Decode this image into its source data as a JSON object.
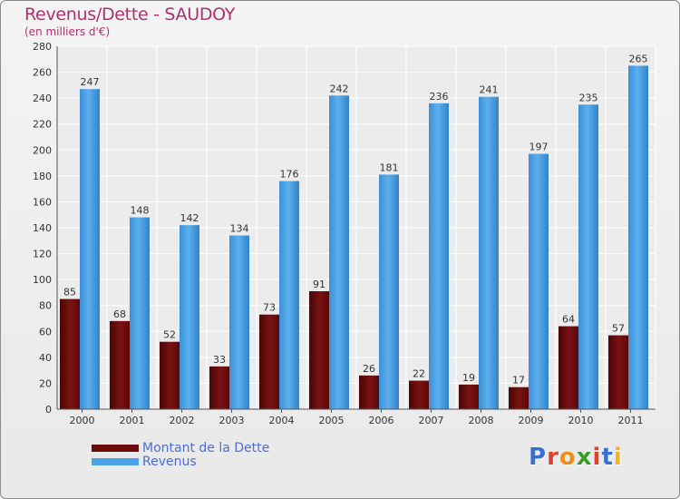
{
  "title": "Revenus/Dette - SAUDOY",
  "subtitle": "(en milliers d'€)",
  "logo": {
    "letters": [
      {
        "ch": "P",
        "color": "#3a6fd0"
      },
      {
        "ch": "r",
        "color": "#e2402a"
      },
      {
        "ch": "o",
        "color": "#f08c1c"
      },
      {
        "ch": "x",
        "color": "#3a9a2a"
      },
      {
        "ch": "i",
        "color": "#e2402a"
      },
      {
        "ch": "t",
        "color": "#3a6fd0"
      },
      {
        "ch": "i",
        "color": "#f0b41c"
      }
    ]
  },
  "legend": {
    "items": [
      {
        "label": "Montant de la Dette",
        "color": "#6a0a0a"
      },
      {
        "label": "Revenus",
        "color": "#4aa3e8"
      }
    ]
  },
  "chart_data": {
    "type": "bar",
    "title": "Revenus/Dette - SAUDOY",
    "subtitle": "(en milliers d'€)",
    "categories": [
      "2000",
      "2001",
      "2002",
      "2003",
      "2004",
      "2005",
      "2006",
      "2007",
      "2008",
      "2009",
      "2010",
      "2011"
    ],
    "series": [
      {
        "name": "Montant de la Dette",
        "color": "#6a0a0a",
        "values": [
          85,
          68,
          52,
          33,
          73,
          91,
          26,
          22,
          19,
          17,
          64,
          57
        ]
      },
      {
        "name": "Revenus",
        "color": "#4aa3e8",
        "values": [
          247,
          148,
          142,
          134,
          176,
          242,
          181,
          236,
          241,
          197,
          235,
          265
        ]
      }
    ],
    "ylim": [
      0,
      280
    ],
    "yticks": [
      0,
      20,
      40,
      60,
      80,
      100,
      120,
      140,
      160,
      180,
      200,
      220,
      240,
      260,
      280
    ],
    "grid": true,
    "legend_position": "bottom-left"
  }
}
